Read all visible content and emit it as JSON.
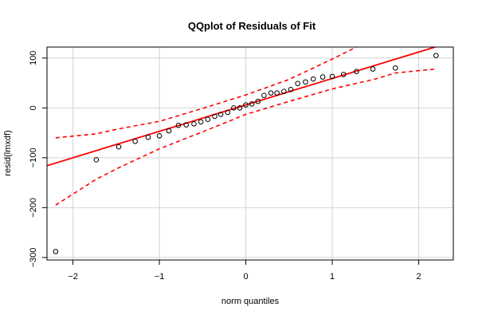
{
  "chart_data": {
    "type": "scatter",
    "title": "QQplot of Residuals of Fit",
    "xlabel": "norm quantiles",
    "ylabel": "resid(lmxdf)",
    "xlim": [
      -2.3,
      2.4
    ],
    "ylim": [
      -305,
      122
    ],
    "x_ticks": [
      -2,
      -1,
      0,
      1,
      2
    ],
    "x_tick_labels": [
      "−2",
      "−1",
      "0",
      "1",
      "2"
    ],
    "y_ticks": [
      -300,
      -200,
      -100,
      0,
      100
    ],
    "y_tick_labels": [
      "−300",
      "−200",
      "−100",
      "0",
      "100"
    ],
    "grid": true,
    "points": [
      {
        "x": -2.2,
        "y": -288
      },
      {
        "x": -1.73,
        "y": -104
      },
      {
        "x": -1.47,
        "y": -78
      },
      {
        "x": -1.28,
        "y": -67
      },
      {
        "x": -1.13,
        "y": -59
      },
      {
        "x": -1.0,
        "y": -56
      },
      {
        "x": -0.89,
        "y": -46
      },
      {
        "x": -0.78,
        "y": -35
      },
      {
        "x": -0.69,
        "y": -34
      },
      {
        "x": -0.6,
        "y": -32
      },
      {
        "x": -0.52,
        "y": -28
      },
      {
        "x": -0.44,
        "y": -23
      },
      {
        "x": -0.36,
        "y": -17
      },
      {
        "x": -0.29,
        "y": -13
      },
      {
        "x": -0.21,
        "y": -9
      },
      {
        "x": -0.14,
        "y": 0
      },
      {
        "x": -0.07,
        "y": 0
      },
      {
        "x": 0.0,
        "y": 6
      },
      {
        "x": 0.07,
        "y": 8
      },
      {
        "x": 0.14,
        "y": 13
      },
      {
        "x": 0.21,
        "y": 25
      },
      {
        "x": 0.29,
        "y": 30
      },
      {
        "x": 0.36,
        "y": 30
      },
      {
        "x": 0.44,
        "y": 33
      },
      {
        "x": 0.52,
        "y": 37
      },
      {
        "x": 0.6,
        "y": 49
      },
      {
        "x": 0.69,
        "y": 52
      },
      {
        "x": 0.78,
        "y": 58
      },
      {
        "x": 0.89,
        "y": 62
      },
      {
        "x": 1.0,
        "y": 63
      },
      {
        "x": 1.13,
        "y": 67
      },
      {
        "x": 1.28,
        "y": 73
      },
      {
        "x": 1.47,
        "y": 78
      },
      {
        "x": 1.73,
        "y": 80
      },
      {
        "x": 2.2,
        "y": 105
      }
    ],
    "reference_line": {
      "intercept": 6,
      "slope": 53,
      "color": "#ff0000"
    },
    "confidence_upper": [
      {
        "x": -2.2,
        "y": -60
      },
      {
        "x": -1.73,
        "y": -52
      },
      {
        "x": -1.47,
        "y": -42
      },
      {
        "x": -1.0,
        "y": -27
      },
      {
        "x": -0.5,
        "y": -1
      },
      {
        "x": 0.0,
        "y": 26
      },
      {
        "x": 0.5,
        "y": 57
      },
      {
        "x": 1.0,
        "y": 98
      },
      {
        "x": 1.28,
        "y": 122
      }
    ],
    "confidence_lower": [
      {
        "x": -2.2,
        "y": -195
      },
      {
        "x": -1.73,
        "y": -143
      },
      {
        "x": -1.47,
        "y": -120
      },
      {
        "x": -1.0,
        "y": -82
      },
      {
        "x": -0.5,
        "y": -48
      },
      {
        "x": 0.0,
        "y": -13
      },
      {
        "x": 0.5,
        "y": 13
      },
      {
        "x": 1.0,
        "y": 38
      },
      {
        "x": 1.5,
        "y": 58
      },
      {
        "x": 1.73,
        "y": 70
      },
      {
        "x": 2.2,
        "y": 78
      }
    ],
    "line_color": "#ff0000",
    "grid_color": "#d3d3d3",
    "point_color": "#000000"
  }
}
